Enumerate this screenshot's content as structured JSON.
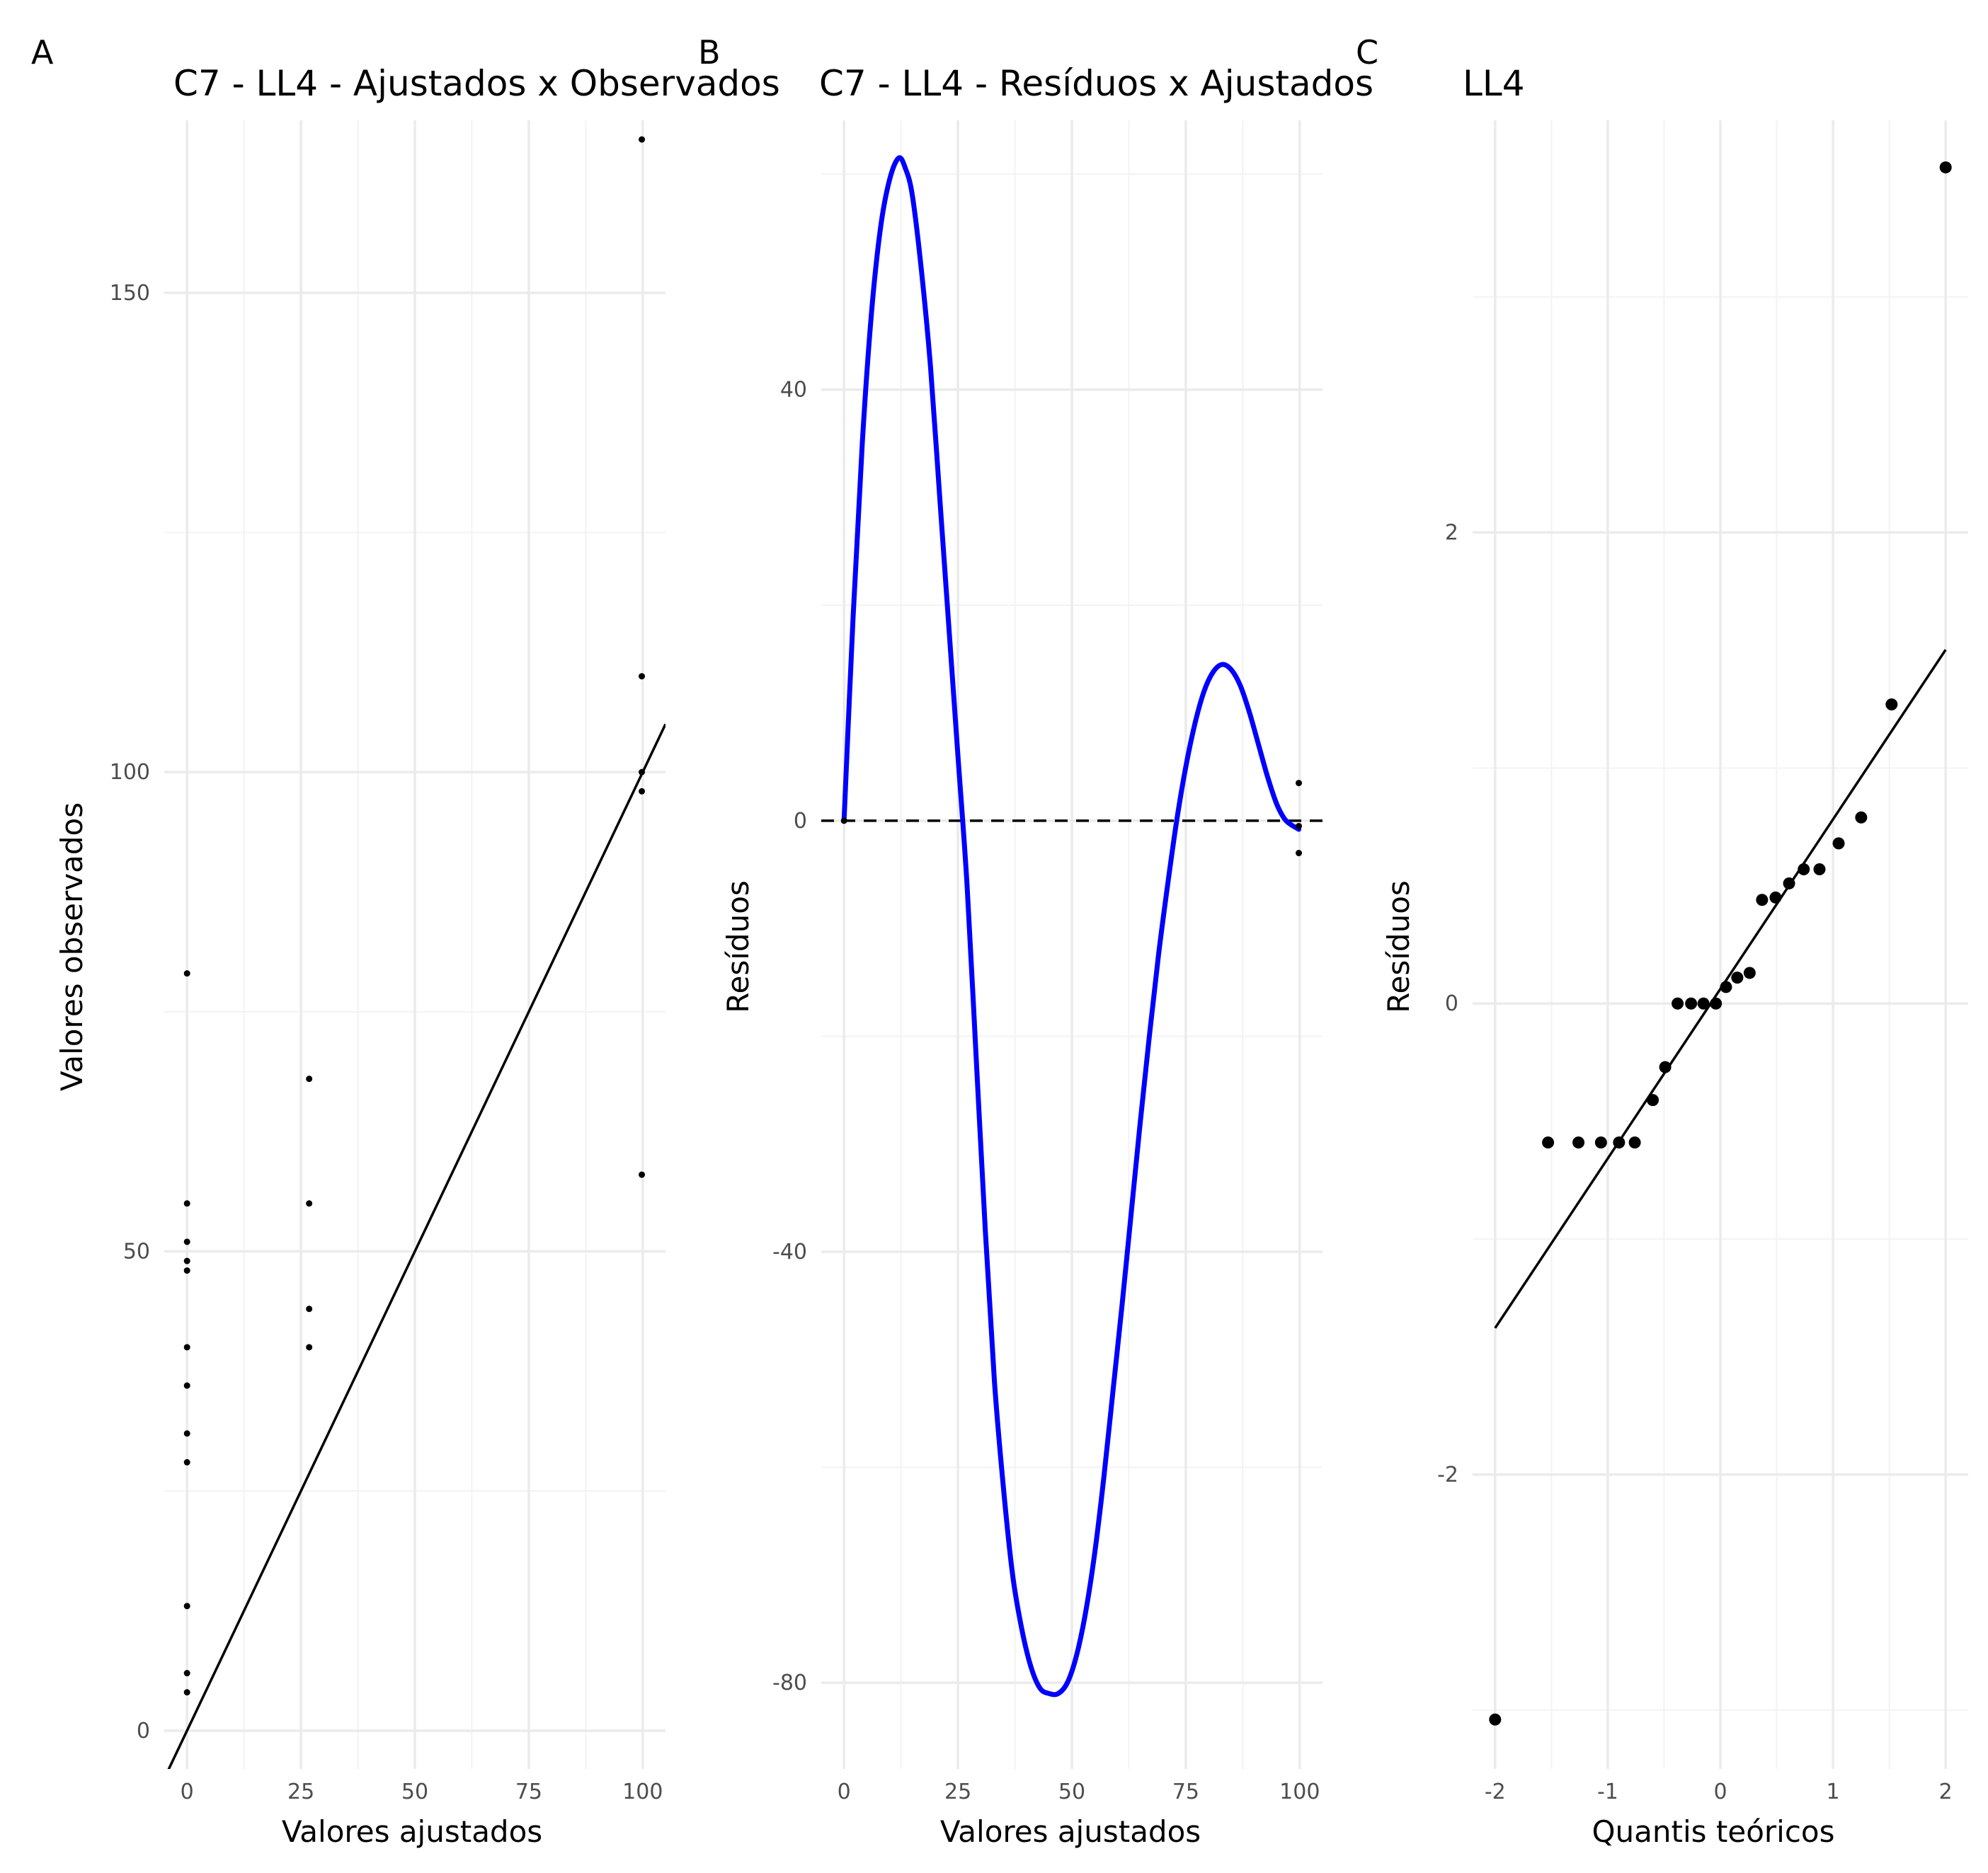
{
  "chart_data": [
    {
      "type": "scatter",
      "panel_label": "A",
      "title": "C7 - LL4 - Ajustados x Observados",
      "xlabel": "Valores ajustados",
      "ylabel": "Valores observados",
      "xlim": [
        -5,
        105
      ],
      "ylim": [
        -4,
        168
      ],
      "x_ticks": [
        0,
        25,
        50,
        75,
        100
      ],
      "y_ticks": [
        0,
        50,
        100,
        150
      ],
      "grid": true,
      "points": [
        {
          "x": 0,
          "y": 79
        },
        {
          "x": 0,
          "y": 55
        },
        {
          "x": 0,
          "y": 51
        },
        {
          "x": 0,
          "y": 49
        },
        {
          "x": 0,
          "y": 48
        },
        {
          "x": 0,
          "y": 40
        },
        {
          "x": 0,
          "y": 36
        },
        {
          "x": 0,
          "y": 31
        },
        {
          "x": 0,
          "y": 28
        },
        {
          "x": 0,
          "y": 13
        },
        {
          "x": 0,
          "y": 6
        },
        {
          "x": 0,
          "y": 4
        },
        {
          "x": 26.8,
          "y": 68
        },
        {
          "x": 26.8,
          "y": 55
        },
        {
          "x": 26.8,
          "y": 44
        },
        {
          "x": 26.8,
          "y": 40
        },
        {
          "x": 99.8,
          "y": 166
        },
        {
          "x": 99.8,
          "y": 110
        },
        {
          "x": 99.8,
          "y": 100
        },
        {
          "x": 99.8,
          "y": 98
        },
        {
          "x": 99.8,
          "y": 58
        }
      ],
      "reference_line": {
        "intercept": 0,
        "slope": 1
      }
    },
    {
      "type": "line",
      "panel_label": "B",
      "title": "C7 - LL4 - Resíduos x Ajustados",
      "xlabel": "Valores ajustados",
      "ylabel": "Resíduos",
      "xlim": [
        -5,
        105
      ],
      "ylim": [
        -88,
        65
      ],
      "x_ticks": [
        0,
        25,
        50,
        75,
        100
      ],
      "y_ticks": [
        -80,
        -40,
        0,
        40
      ],
      "grid": true,
      "smooth_color": "#0000ff",
      "smooth_line": [
        {
          "x": 0,
          "y": 0
        },
        {
          "x": 2,
          "y": 19
        },
        {
          "x": 4,
          "y": 35
        },
        {
          "x": 6,
          "y": 47
        },
        {
          "x": 8,
          "y": 55
        },
        {
          "x": 10,
          "y": 59.5
        },
        {
          "x": 12,
          "y": 61.5
        },
        {
          "x": 13.5,
          "y": 60.5
        },
        {
          "x": 15,
          "y": 58
        },
        {
          "x": 17,
          "y": 51
        },
        {
          "x": 19,
          "y": 42
        },
        {
          "x": 21,
          "y": 30
        },
        {
          "x": 23,
          "y": 18
        },
        {
          "x": 25,
          "y": 6
        },
        {
          "x": 27,
          "y": -6
        },
        {
          "x": 29,
          "y": -22
        },
        {
          "x": 31,
          "y": -38
        },
        {
          "x": 33,
          "y": -52
        },
        {
          "x": 35,
          "y": -62
        },
        {
          "x": 37,
          "y": -70
        },
        {
          "x": 39,
          "y": -75
        },
        {
          "x": 41,
          "y": -78.5
        },
        {
          "x": 43,
          "y": -80.5
        },
        {
          "x": 45,
          "y": -81
        },
        {
          "x": 47,
          "y": -81
        },
        {
          "x": 49,
          "y": -80
        },
        {
          "x": 51,
          "y": -77.5
        },
        {
          "x": 53,
          "y": -73.5
        },
        {
          "x": 55,
          "y": -68
        },
        {
          "x": 57,
          "y": -61
        },
        {
          "x": 59,
          "y": -53
        },
        {
          "x": 61,
          "y": -45
        },
        {
          "x": 63,
          "y": -36.5
        },
        {
          "x": 65,
          "y": -28
        },
        {
          "x": 67,
          "y": -20
        },
        {
          "x": 69,
          "y": -12.5
        },
        {
          "x": 71,
          "y": -6
        },
        {
          "x": 73,
          "y": 0
        },
        {
          "x": 75,
          "y": 5
        },
        {
          "x": 77,
          "y": 9
        },
        {
          "x": 79,
          "y": 12
        },
        {
          "x": 81,
          "y": 13.8
        },
        {
          "x": 83,
          "y": 14.5
        },
        {
          "x": 85,
          "y": 14
        },
        {
          "x": 87,
          "y": 12.5
        },
        {
          "x": 89,
          "y": 10
        },
        {
          "x": 91,
          "y": 7
        },
        {
          "x": 93,
          "y": 4
        },
        {
          "x": 95,
          "y": 1.5
        },
        {
          "x": 97,
          "y": 0
        },
        {
          "x": 99.8,
          "y": -0.8
        }
      ],
      "points": [
        {
          "x": 0,
          "y": 0
        },
        {
          "x": 99.8,
          "y": 3.5
        },
        {
          "x": 99.8,
          "y": -0.5
        },
        {
          "x": 99.8,
          "y": -3
        }
      ],
      "reference_line": {
        "y": 0,
        "style": "dashed"
      }
    },
    {
      "type": "scatter",
      "panel_label": "C",
      "title": "LL4",
      "xlabel": "Quantis teóricos",
      "ylabel": "Resíduos",
      "xlim": [
        -2.2,
        2.2
      ],
      "ylim": [
        -3.25,
        3.75
      ],
      "x_ticks": [
        -2,
        -1,
        0,
        1,
        2
      ],
      "y_ticks": [
        -2,
        0,
        2
      ],
      "grid": true,
      "points": [
        {
          "x": -2.0,
          "y": -3.04
        },
        {
          "x": -1.53,
          "y": -0.59
        },
        {
          "x": -1.26,
          "y": -0.59
        },
        {
          "x": -1.06,
          "y": -0.59
        },
        {
          "x": -0.9,
          "y": -0.59
        },
        {
          "x": -0.76,
          "y": -0.59
        },
        {
          "x": -0.6,
          "y": -0.41
        },
        {
          "x": -0.49,
          "y": -0.27
        },
        {
          "x": -0.38,
          "y": 0
        },
        {
          "x": -0.26,
          "y": 0
        },
        {
          "x": -0.15,
          "y": 0
        },
        {
          "x": -0.04,
          "y": 0
        },
        {
          "x": 0.05,
          "y": 0.07
        },
        {
          "x": 0.15,
          "y": 0.11
        },
        {
          "x": 0.26,
          "y": 0.13
        },
        {
          "x": 0.37,
          "y": 0.44
        },
        {
          "x": 0.49,
          "y": 0.45
        },
        {
          "x": 0.61,
          "y": 0.51
        },
        {
          "x": 0.74,
          "y": 0.57
        },
        {
          "x": 0.88,
          "y": 0.57
        },
        {
          "x": 1.05,
          "y": 0.68
        },
        {
          "x": 1.25,
          "y": 0.79
        },
        {
          "x": 1.52,
          "y": 1.27
        },
        {
          "x": 2.0,
          "y": 3.55
        }
      ],
      "reference_line": {
        "intercept": 0.062,
        "slope": 0.72,
        "from_x": -2.0,
        "to_x": 2.0
      }
    }
  ]
}
